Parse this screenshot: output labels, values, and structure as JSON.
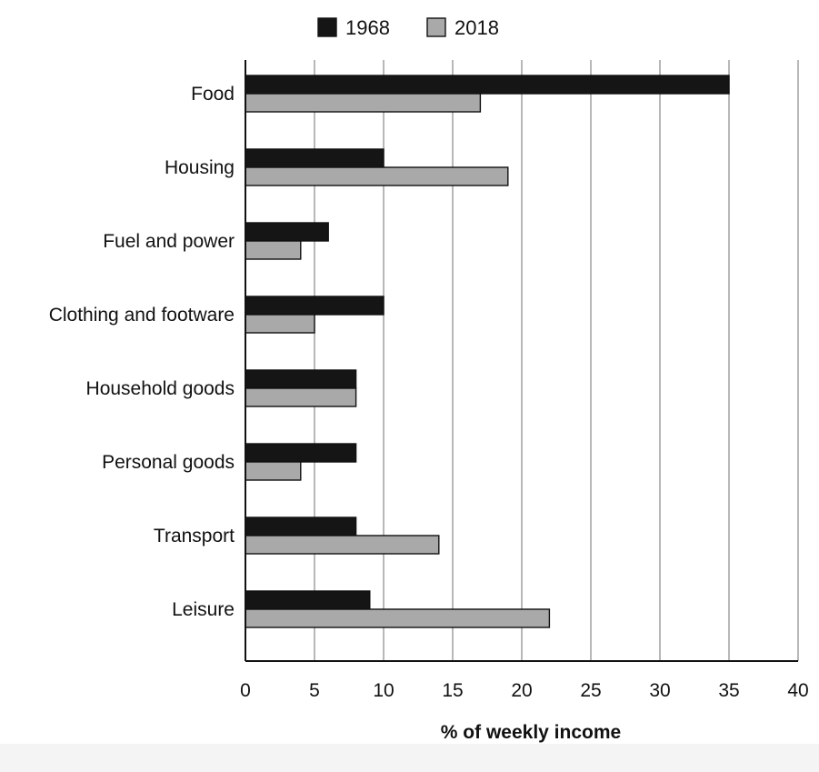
{
  "chart_data": {
    "type": "bar",
    "orientation": "horizontal",
    "categories": [
      "Food",
      "Housing",
      "Fuel and power",
      "Clothing and footware",
      "Household goods",
      "Personal goods",
      "Transport",
      "Leisure"
    ],
    "series": [
      {
        "name": "1968",
        "values": [
          35,
          10,
          6,
          10,
          8,
          8,
          8,
          9
        ],
        "color": "#151515"
      },
      {
        "name": "2018",
        "values": [
          17,
          19,
          4,
          5,
          8,
          4,
          14,
          22
        ],
        "color": "#a9a9a9"
      }
    ],
    "xlabel": "% of weekly income",
    "ylabel": "",
    "xlim": [
      0,
      40
    ],
    "xticks": [
      "0",
      "5",
      "10",
      "15",
      "20",
      "25",
      "30",
      "35",
      "40"
    ],
    "grid": "vertical",
    "legend_position": "top"
  }
}
